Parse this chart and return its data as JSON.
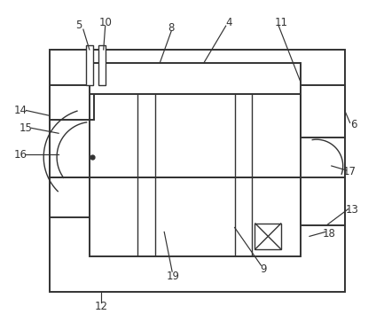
{
  "bg_color": "#ffffff",
  "line_color": "#333333",
  "line_width": 1.4,
  "fig_width": 4.24,
  "fig_height": 3.72
}
